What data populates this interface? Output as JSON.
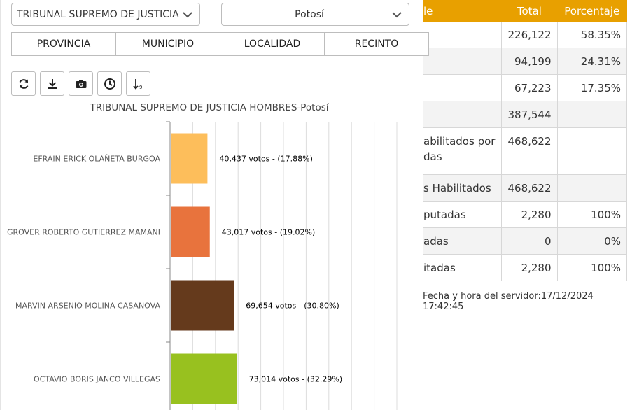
{
  "filters": {
    "cargo": "TRIBUNAL SUPREMO DE JUSTICIA HOMBRES",
    "departamento": "Potosí"
  },
  "tabs": [
    "PROVINCIA",
    "MUNICIPIO",
    "LOCALIDAD",
    "RECINTO"
  ],
  "toolbar": {
    "icons": [
      "refresh-icon",
      "download-icon",
      "camera-icon",
      "clock-icon",
      "sort-icon"
    ]
  },
  "results_table": {
    "header": {
      "label": "le",
      "total": "Total",
      "percent": "Porcentaje"
    },
    "rows": [
      {
        "label": "",
        "total": "226,122",
        "percent": "58.35%"
      },
      {
        "label": "",
        "total": "94,199",
        "percent": "24.31%"
      },
      {
        "label": "",
        "total": "67,223",
        "percent": "17.35%"
      },
      {
        "label": "",
        "total": "387,544",
        "percent": ""
      },
      {
        "label": "abilitados por das",
        "total": "468,622",
        "percent": ""
      },
      {
        "label": "s Habilitados",
        "total": "468,622",
        "percent": ""
      },
      {
        "label": "putadas",
        "total": "2,280",
        "percent": "100%"
      },
      {
        "label": "adas",
        "total": "0",
        "percent": "0%"
      },
      {
        "label": "itadas",
        "total": "2,280",
        "percent": "100%"
      }
    ]
  },
  "server_time": {
    "label": "Fecha y hora del servidor:",
    "value": "17/12/2024 17:42:45"
  },
  "chart_data": {
    "type": "bar",
    "orientation": "horizontal",
    "title": "TRIBUNAL SUPREMO DE JUSTICIA HOMBRES-Potosí",
    "grid": true,
    "xlim": [
      0,
      250000
    ],
    "categories": [
      "EFRAIN ERICK OLAÑETA BURGOA",
      "GROVER ROBERTO GUTIERREZ MAMANI",
      "MARVIN ARSENIO MOLINA CASANOVA",
      "OCTAVIO BORIS JANCO VILLEGAS"
    ],
    "values": [
      40437,
      43017,
      69654,
      73014
    ],
    "labels": [
      "40,437 votos - (17.88%)",
      "43,017 votos - (19.02%)",
      "69,654 votos - (30.80%)",
      "73,014 votos - (32.29%)"
    ],
    "colors": [
      "#fdbe5b",
      "#e8733d",
      "#653a1c",
      "#98c11f"
    ]
  }
}
